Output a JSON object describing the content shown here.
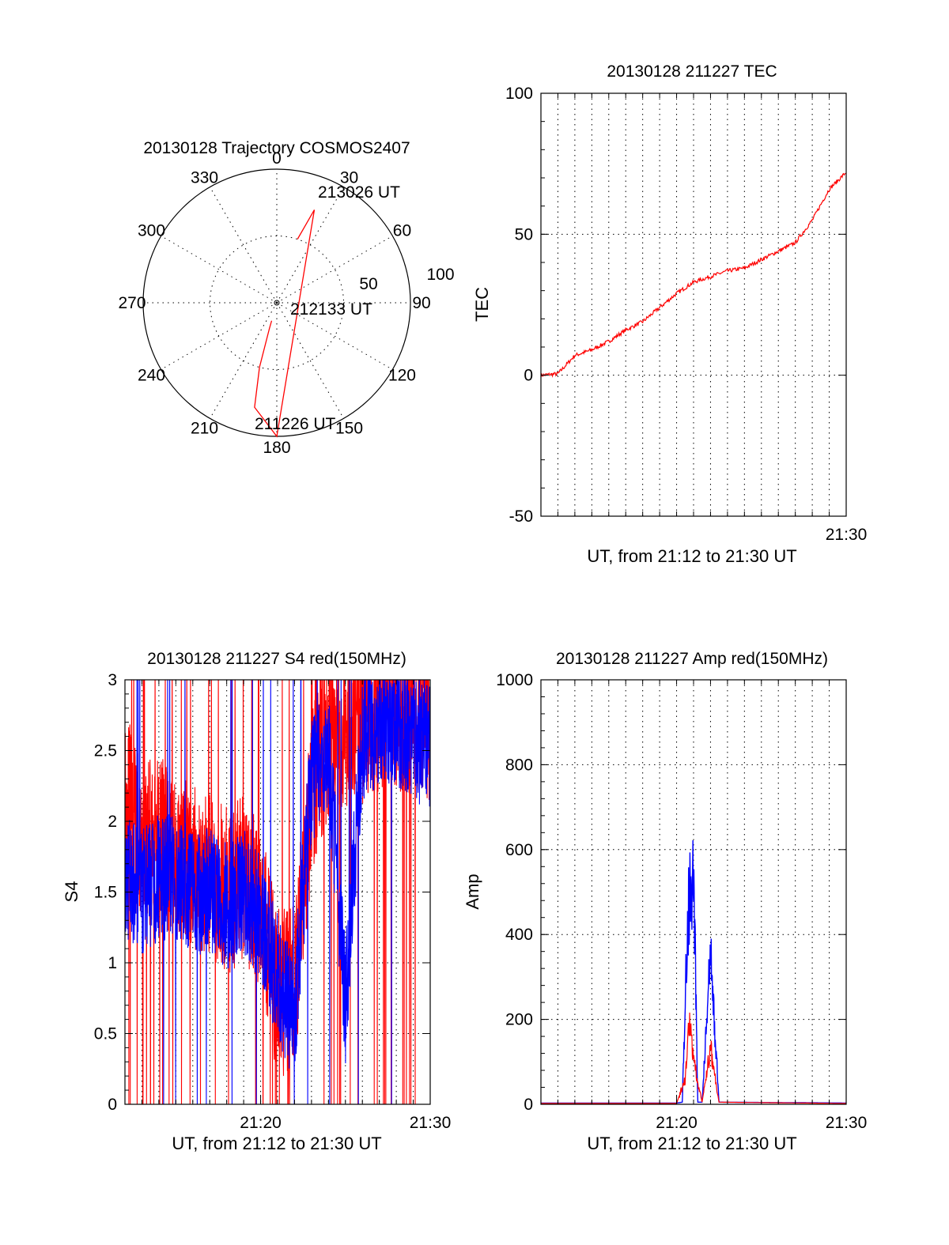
{
  "chart_data": [
    {
      "id": "polar",
      "type": "scatter",
      "title": "20130128 Trajectory COSMOS2407",
      "angle_labels": [
        "0",
        "30",
        "60",
        "90",
        "120",
        "150",
        "180",
        "210",
        "240",
        "270",
        "300",
        "330"
      ],
      "radial_labels": [
        "50",
        "100"
      ],
      "rlim": [
        0,
        100
      ],
      "grid": true,
      "trajectory": {
        "color": "#ff0000",
        "points": [
          {
            "azimuth": 18,
            "elevation": 50
          },
          {
            "azimuth": 22,
            "elevation": 25
          },
          {
            "azimuth": 180,
            "elevation": 0
          },
          {
            "azimuth": 192,
            "elevation": 20
          },
          {
            "azimuth": 195,
            "elevation": 50
          },
          {
            "azimuth": 196,
            "elevation": 80
          },
          {
            "azimuth": 196,
            "elevation": 86
          }
        ]
      },
      "annotations": [
        "213026 UT",
        "212133 UT",
        "211226 UT"
      ]
    },
    {
      "id": "tec",
      "type": "line",
      "title": "20130128 211227 TEC",
      "xlabel": "UT, from 21:12 to 21:30 UT",
      "ylabel": "TEC",
      "xlim": [
        "21:12",
        "21:30"
      ],
      "ylim": [
        -50,
        100
      ],
      "yticks": [
        "-50",
        "0",
        "50",
        "100"
      ],
      "xticks": [
        {
          "x": "21:30",
          "label": "21:30"
        }
      ],
      "grid": true,
      "series": [
        {
          "color": "#ff0000",
          "x": [
            "21:12",
            "21:13",
            "21:14",
            "21:15",
            "21:16",
            "21:17",
            "21:18",
            "21:19",
            "21:20",
            "21:21",
            "21:22",
            "21:23",
            "21:24",
            "21:25",
            "21:26",
            "21:27",
            "21:28",
            "21:29",
            "21:30"
          ],
          "values": [
            0,
            0.5,
            7,
            9,
            12,
            16,
            19,
            24,
            29,
            33,
            35,
            37,
            38,
            41,
            44,
            47,
            55,
            66,
            72
          ]
        }
      ]
    },
    {
      "id": "s4",
      "type": "line",
      "title": "20130128 211227 S4 red(150MHz)",
      "xlabel": "UT, from 21:12 to 21:30 UT",
      "ylabel": "S4",
      "xlim": [
        "21:12",
        "21:30"
      ],
      "ylim": [
        0,
        3
      ],
      "yticks": [
        "0",
        "0.5",
        "1",
        "1.5",
        "2",
        "2.5",
        "3"
      ],
      "xticks": [
        {
          "x": "21:20",
          "label": "21:20"
        },
        {
          "x": "21:30",
          "label": "21:30"
        }
      ],
      "grid": true,
      "series": [
        {
          "color": "#ff0000",
          "x": [
            "21:12",
            "21:13",
            "21:14",
            "21:15",
            "21:16",
            "21:17",
            "21:18",
            "21:19",
            "21:20",
            "21:21",
            "21:22",
            "21:23",
            "21:24",
            "21:25",
            "21:26",
            "21:27",
            "21:28",
            "21:29",
            "21:30"
          ],
          "values": [
            2.2,
            1.8,
            1.9,
            1.7,
            1.7,
            1.6,
            1.5,
            1.6,
            1.4,
            0.8,
            0.8,
            2.2,
            2.6,
            2.7,
            2.7,
            2.8,
            2.8,
            2.8,
            2.7
          ]
        },
        {
          "color": "#0000ff",
          "x": [
            "21:12",
            "21:13",
            "21:14",
            "21:15",
            "21:16",
            "21:17",
            "21:18",
            "21:19",
            "21:20",
            "21:21",
            "21:22",
            "21:23",
            "21:24",
            "21:25",
            "21:26",
            "21:27",
            "21:28",
            "21:29",
            "21:30"
          ],
          "values": [
            1.6,
            1.5,
            1.6,
            1.6,
            1.5,
            1.5,
            1.4,
            1.5,
            1.3,
            0.9,
            0.6,
            2.3,
            2.5,
            0.7,
            2.6,
            2.7,
            2.7,
            2.6,
            2.5
          ]
        }
      ]
    },
    {
      "id": "amp",
      "type": "line",
      "title": "20130128 211227 Amp red(150MHz)",
      "xlabel": "UT, from 21:12 to 21:30 UT",
      "ylabel": "Amp",
      "xlim": [
        "21:12",
        "21:30"
      ],
      "ylim": [
        0,
        1000
      ],
      "yticks": [
        "0",
        "200",
        "400",
        "600",
        "800",
        "1000"
      ],
      "xticks": [
        {
          "x": "21:20",
          "label": "21:20"
        },
        {
          "x": "21:30",
          "label": "21:30"
        }
      ],
      "grid": true,
      "series": [
        {
          "color": "#0000ff",
          "x": [
            "21:12",
            "21:20",
            "21:20:20",
            "21:20:40",
            "21:21",
            "21:21:15",
            "21:21:30",
            "21:22",
            "21:22:30",
            "21:30"
          ],
          "values": [
            3,
            3,
            5,
            450,
            550,
            5,
            5,
            350,
            5,
            3
          ]
        },
        {
          "color": "#ff0000",
          "x": [
            "21:12",
            "21:20",
            "21:20:30",
            "21:20:45",
            "21:21",
            "21:21:30",
            "21:22",
            "21:22:30",
            "21:30"
          ],
          "values": [
            2,
            2,
            60,
            190,
            100,
            5,
            130,
            5,
            2
          ]
        }
      ]
    }
  ]
}
